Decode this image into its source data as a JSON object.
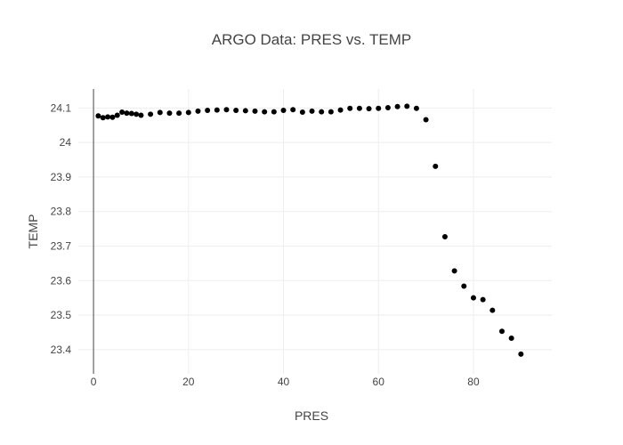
{
  "chart_data": {
    "type": "scatter",
    "title": "ARGO Data: PRES vs. TEMP",
    "xlabel": "PRES",
    "ylabel": "TEMP",
    "xlim": [
      -3.2,
      96.5
    ],
    "ylim": [
      23.33,
      24.155
    ],
    "xticks": [
      0,
      20,
      40,
      60,
      80
    ],
    "yticks": [
      23.4,
      23.5,
      23.6,
      23.7,
      23.8,
      23.9,
      24,
      24.1
    ],
    "grid": true,
    "marker_color": "#000000",
    "x": [
      1,
      2,
      3,
      4,
      5,
      6,
      7,
      8,
      9,
      10,
      12,
      14,
      16,
      18,
      20,
      22,
      24,
      26,
      28,
      30,
      32,
      34,
      36,
      38,
      40,
      42,
      44,
      46,
      48,
      50,
      52,
      54,
      56,
      58,
      60,
      62,
      64,
      66,
      68,
      70,
      72,
      74,
      76,
      78,
      80,
      82,
      84,
      86,
      88,
      90
    ],
    "y": [
      24.077,
      24.072,
      24.074,
      24.073,
      24.079,
      24.088,
      24.085,
      24.084,
      24.082,
      24.079,
      24.082,
      24.087,
      24.085,
      24.085,
      24.087,
      24.091,
      24.093,
      24.094,
      24.095,
      24.093,
      24.092,
      24.091,
      24.089,
      24.089,
      24.093,
      24.095,
      24.088,
      24.091,
      24.089,
      24.089,
      24.094,
      24.099,
      24.099,
      24.098,
      24.099,
      24.101,
      24.104,
      24.105,
      24.099,
      24.066,
      23.931,
      23.727,
      23.628,
      23.584,
      23.55,
      23.545,
      23.514,
      23.453,
      23.433,
      23.387
    ]
  }
}
